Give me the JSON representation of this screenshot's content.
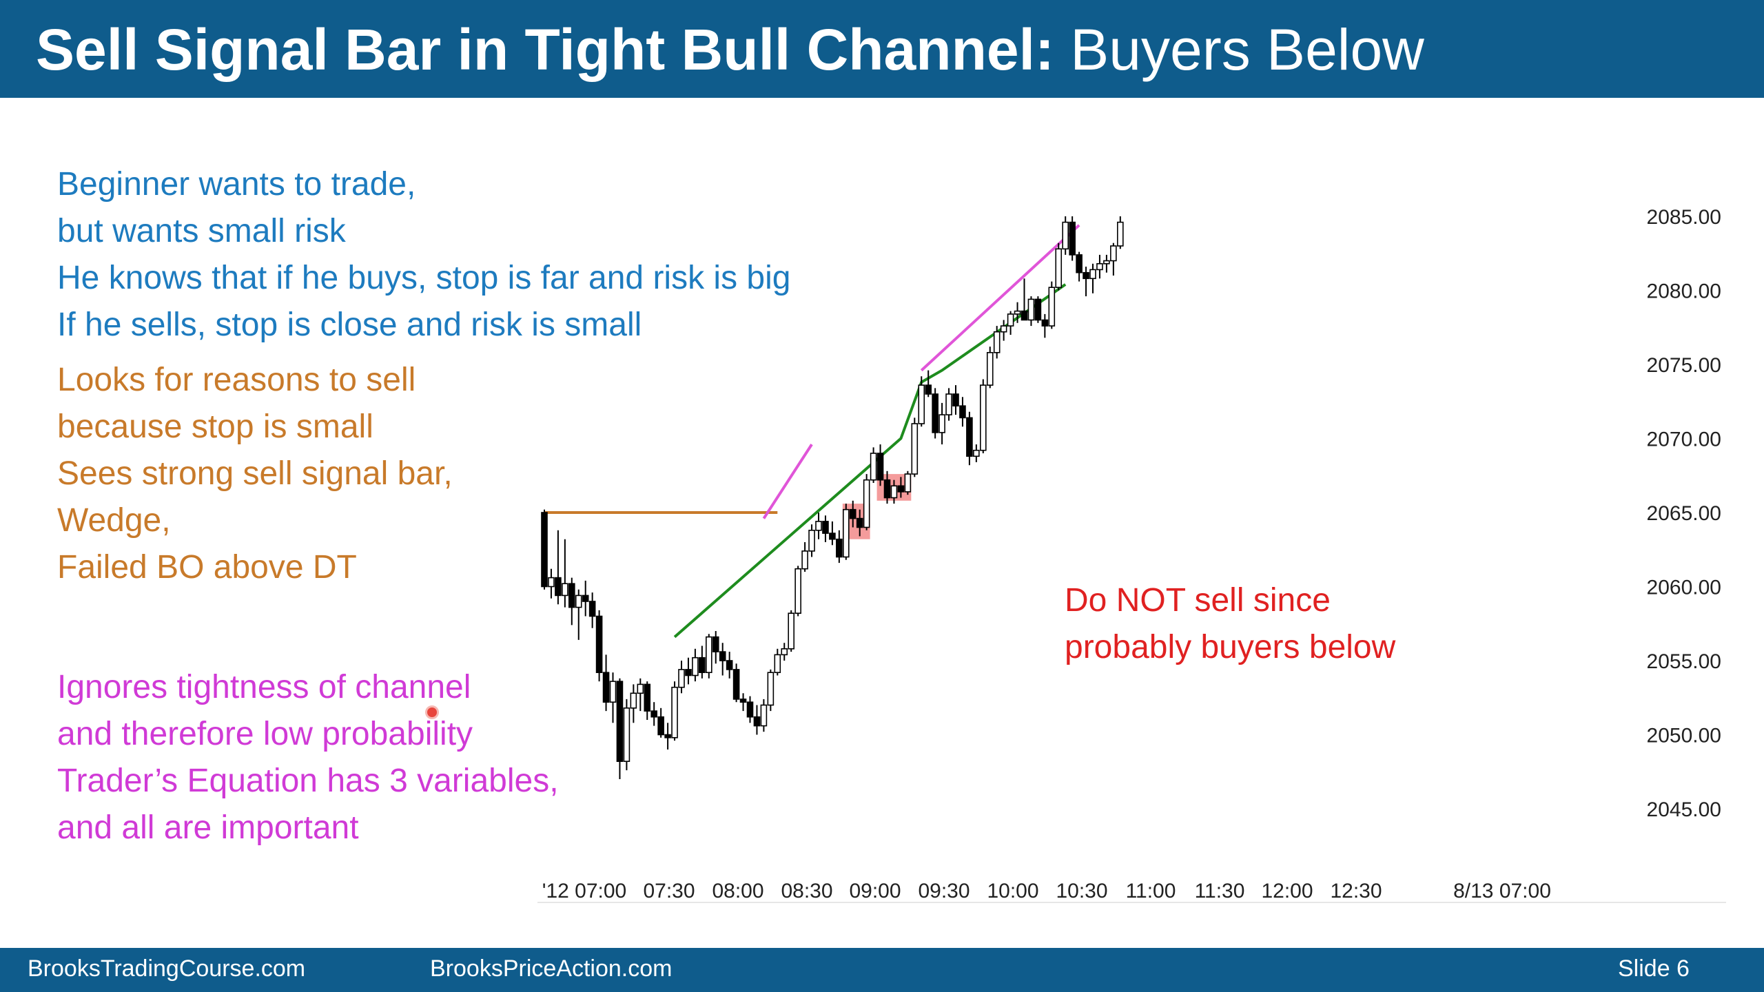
{
  "slide": {
    "title_bold": "Sell Signal Bar in Tight Bull Channel:",
    "title_normal": "Buyers Below",
    "blue_lines": [
      "Beginner wants to trade,",
      "but wants small risk",
      "He knows that if he buys, stop is far and risk is big",
      "If he sells, stop is close and risk is small"
    ],
    "orange_lines": [
      "Looks for reasons to sell",
      "because stop is small",
      "Sees strong sell signal bar,",
      "Wedge,",
      "Failed BO above DT"
    ],
    "magenta_lines": [
      "Ignores tightness of channel",
      "and therefore low probability",
      "Trader’s Equation has 3 variables,",
      "and all are important"
    ],
    "red_note_lines": [
      "Do NOT sell since",
      "probably buyers below"
    ],
    "footer": {
      "left": "BrooksTradingCourse.com",
      "middle": "BrooksPriceAction.com",
      "right": "Slide  6"
    },
    "colors": {
      "header": "#0f5c8c",
      "blue_text": "#1d7bbf",
      "orange_text": "#c87a2a",
      "magenta_text": "#d03ad6",
      "red_text": "#e02121",
      "green_line": "#1e8c1e",
      "magenta_line": "#e055d8",
      "orange_line": "#c87a2a",
      "highlight": "#f28a8a"
    }
  },
  "chart_data": {
    "type": "candlestick",
    "y_ticks": [
      2085,
      2080,
      2075,
      2070,
      2065,
      2060,
      2055,
      2050,
      2045
    ],
    "y_tick_labels": [
      "2085.00",
      "2080.00",
      "2075.00",
      "2070.00",
      "2065.00",
      "2060.00",
      "2055.00",
      "2050.00",
      "2045.00"
    ],
    "ylim": [
      2042.5,
      2087.5
    ],
    "x_labels": [
      "'12 07:00",
      "07:30",
      "08:00",
      "08:30",
      "09:00",
      "09:30",
      "10:00",
      "10:30",
      "11:00",
      "11:30",
      "12:00",
      "12:30",
      "8/13 07:00"
    ],
    "bar_interval_minutes": 5,
    "session_start": "07:00",
    "bars": [
      {
        "o": 2065.0,
        "h": 2065.2,
        "l": 2059.8,
        "c": 2060.0
      },
      {
        "o": 2060.0,
        "h": 2061.2,
        "l": 2059.2,
        "c": 2060.6
      },
      {
        "o": 2060.6,
        "h": 2063.8,
        "l": 2058.8,
        "c": 2059.4
      },
      {
        "o": 2059.4,
        "h": 2063.2,
        "l": 2058.6,
        "c": 2060.2
      },
      {
        "o": 2060.2,
        "h": 2060.6,
        "l": 2057.4,
        "c": 2058.6
      },
      {
        "o": 2058.6,
        "h": 2059.8,
        "l": 2056.4,
        "c": 2059.4
      },
      {
        "o": 2059.4,
        "h": 2060.4,
        "l": 2058.0,
        "c": 2059.0
      },
      {
        "o": 2059.0,
        "h": 2059.6,
        "l": 2057.2,
        "c": 2058.0
      },
      {
        "o": 2058.0,
        "h": 2058.4,
        "l": 2053.6,
        "c": 2054.2
      },
      {
        "o": 2054.2,
        "h": 2055.4,
        "l": 2051.6,
        "c": 2052.2
      },
      {
        "o": 2052.2,
        "h": 2054.2,
        "l": 2050.8,
        "c": 2053.6
      },
      {
        "o": 2053.6,
        "h": 2053.8,
        "l": 2047.0,
        "c": 2048.2
      },
      {
        "o": 2048.2,
        "h": 2052.4,
        "l": 2047.6,
        "c": 2051.8
      },
      {
        "o": 2051.8,
        "h": 2053.4,
        "l": 2050.8,
        "c": 2052.8
      },
      {
        "o": 2052.8,
        "h": 2053.8,
        "l": 2051.6,
        "c": 2053.4
      },
      {
        "o": 2053.4,
        "h": 2053.6,
        "l": 2051.0,
        "c": 2051.6
      },
      {
        "o": 2051.6,
        "h": 2052.2,
        "l": 2050.6,
        "c": 2051.2
      },
      {
        "o": 2051.2,
        "h": 2051.8,
        "l": 2049.8,
        "c": 2050.0
      },
      {
        "o": 2050.0,
        "h": 2050.8,
        "l": 2049.0,
        "c": 2049.8
      },
      {
        "o": 2049.8,
        "h": 2053.6,
        "l": 2049.6,
        "c": 2053.2
      },
      {
        "o": 2053.2,
        "h": 2055.0,
        "l": 2052.8,
        "c": 2054.4
      },
      {
        "o": 2054.4,
        "h": 2055.2,
        "l": 2053.4,
        "c": 2054.0
      },
      {
        "o": 2054.0,
        "h": 2055.8,
        "l": 2053.6,
        "c": 2055.2
      },
      {
        "o": 2055.2,
        "h": 2056.0,
        "l": 2053.8,
        "c": 2054.2
      },
      {
        "o": 2054.2,
        "h": 2056.8,
        "l": 2053.8,
        "c": 2056.6
      },
      {
        "o": 2056.6,
        "h": 2057.0,
        "l": 2054.8,
        "c": 2055.6
      },
      {
        "o": 2055.6,
        "h": 2056.2,
        "l": 2054.0,
        "c": 2055.0
      },
      {
        "o": 2055.0,
        "h": 2055.6,
        "l": 2053.8,
        "c": 2054.4
      },
      {
        "o": 2054.4,
        "h": 2054.8,
        "l": 2052.2,
        "c": 2052.4
      },
      {
        "o": 2052.4,
        "h": 2052.8,
        "l": 2051.6,
        "c": 2052.2
      },
      {
        "o": 2052.2,
        "h": 2052.6,
        "l": 2050.8,
        "c": 2051.2
      },
      {
        "o": 2051.2,
        "h": 2052.0,
        "l": 2050.0,
        "c": 2050.6
      },
      {
        "o": 2050.6,
        "h": 2052.4,
        "l": 2050.2,
        "c": 2052.0
      },
      {
        "o": 2052.0,
        "h": 2054.4,
        "l": 2051.6,
        "c": 2054.2
      },
      {
        "o": 2054.2,
        "h": 2055.8,
        "l": 2054.0,
        "c": 2055.4
      },
      {
        "o": 2055.4,
        "h": 2056.2,
        "l": 2055.0,
        "c": 2055.8
      },
      {
        "o": 2055.8,
        "h": 2058.4,
        "l": 2055.6,
        "c": 2058.2
      },
      {
        "o": 2058.2,
        "h": 2061.4,
        "l": 2058.0,
        "c": 2061.2
      },
      {
        "o": 2061.2,
        "h": 2063.0,
        "l": 2061.0,
        "c": 2062.4
      },
      {
        "o": 2062.4,
        "h": 2064.2,
        "l": 2062.0,
        "c": 2063.8
      },
      {
        "o": 2063.8,
        "h": 2065.0,
        "l": 2063.2,
        "c": 2064.4
      },
      {
        "o": 2064.4,
        "h": 2064.8,
        "l": 2063.0,
        "c": 2063.6
      },
      {
        "o": 2063.6,
        "h": 2064.4,
        "l": 2062.8,
        "c": 2063.2
      },
      {
        "o": 2063.2,
        "h": 2063.8,
        "l": 2061.6,
        "c": 2062.0
      },
      {
        "o": 2062.0,
        "h": 2065.6,
        "l": 2061.8,
        "c": 2065.2
      },
      {
        "o": 2065.2,
        "h": 2065.8,
        "l": 2064.0,
        "c": 2064.6
      },
      {
        "o": 2064.6,
        "h": 2065.2,
        "l": 2063.4,
        "c": 2064.0
      },
      {
        "o": 2064.0,
        "h": 2067.6,
        "l": 2063.8,
        "c": 2067.2
      },
      {
        "o": 2067.2,
        "h": 2069.4,
        "l": 2067.0,
        "c": 2069.0
      },
      {
        "o": 2069.0,
        "h": 2069.6,
        "l": 2066.8,
        "c": 2067.2
      },
      {
        "o": 2067.2,
        "h": 2067.8,
        "l": 2065.6,
        "c": 2066.0
      },
      {
        "o": 2066.0,
        "h": 2067.2,
        "l": 2065.6,
        "c": 2066.8
      },
      {
        "o": 2066.8,
        "h": 2067.4,
        "l": 2066.0,
        "c": 2066.4
      },
      {
        "o": 2066.4,
        "h": 2067.8,
        "l": 2066.2,
        "c": 2067.6
      },
      {
        "o": 2067.6,
        "h": 2071.4,
        "l": 2067.4,
        "c": 2071.0
      },
      {
        "o": 2071.0,
        "h": 2074.2,
        "l": 2070.8,
        "c": 2073.6
      },
      {
        "o": 2073.6,
        "h": 2074.6,
        "l": 2072.8,
        "c": 2073.0
      },
      {
        "o": 2073.0,
        "h": 2073.4,
        "l": 2070.0,
        "c": 2070.4
      },
      {
        "o": 2070.4,
        "h": 2072.4,
        "l": 2069.6,
        "c": 2071.6
      },
      {
        "o": 2071.6,
        "h": 2073.4,
        "l": 2071.2,
        "c": 2073.0
      },
      {
        "o": 2073.0,
        "h": 2073.6,
        "l": 2071.6,
        "c": 2072.2
      },
      {
        "o": 2072.2,
        "h": 2072.8,
        "l": 2070.8,
        "c": 2071.4
      },
      {
        "o": 2071.4,
        "h": 2071.8,
        "l": 2068.2,
        "c": 2068.8
      },
      {
        "o": 2068.8,
        "h": 2069.6,
        "l": 2068.4,
        "c": 2069.2
      },
      {
        "o": 2069.2,
        "h": 2074.0,
        "l": 2069.0,
        "c": 2073.6
      },
      {
        "o": 2073.6,
        "h": 2076.2,
        "l": 2073.4,
        "c": 2075.8
      },
      {
        "o": 2075.8,
        "h": 2077.6,
        "l": 2075.4,
        "c": 2077.2
      },
      {
        "o": 2077.2,
        "h": 2078.0,
        "l": 2076.6,
        "c": 2077.6
      },
      {
        "o": 2077.6,
        "h": 2078.6,
        "l": 2077.0,
        "c": 2078.4
      },
      {
        "o": 2078.4,
        "h": 2079.2,
        "l": 2077.8,
        "c": 2078.6
      },
      {
        "o": 2078.6,
        "h": 2080.8,
        "l": 2078.2,
        "c": 2078.0
      },
      {
        "o": 2078.0,
        "h": 2079.6,
        "l": 2077.6,
        "c": 2079.4
      },
      {
        "o": 2079.4,
        "h": 2079.6,
        "l": 2077.8,
        "c": 2078.0
      },
      {
        "o": 2078.0,
        "h": 2078.4,
        "l": 2076.8,
        "c": 2077.6
      },
      {
        "o": 2077.6,
        "h": 2080.6,
        "l": 2077.4,
        "c": 2080.2
      },
      {
        "o": 2080.2,
        "h": 2083.2,
        "l": 2080.0,
        "c": 2082.8
      },
      {
        "o": 2082.8,
        "h": 2085.0,
        "l": 2082.4,
        "c": 2084.6
      },
      {
        "o": 2084.6,
        "h": 2085.0,
        "l": 2082.0,
        "c": 2082.4
      },
      {
        "o": 2082.4,
        "h": 2082.6,
        "l": 2080.6,
        "c": 2081.2
      },
      {
        "o": 2081.2,
        "h": 2081.6,
        "l": 2079.6,
        "c": 2080.8
      },
      {
        "o": 2080.8,
        "h": 2081.8,
        "l": 2079.8,
        "c": 2081.4
      },
      {
        "o": 2081.4,
        "h": 2082.4,
        "l": 2080.8,
        "c": 2081.8
      },
      {
        "o": 2081.8,
        "h": 2082.4,
        "l": 2081.2,
        "c": 2082.0
      },
      {
        "o": 2082.0,
        "h": 2083.2,
        "l": 2081.0,
        "c": 2083.0
      },
      {
        "o": 2083.0,
        "h": 2085.0,
        "l": 2082.8,
        "c": 2084.6
      }
    ],
    "lines": [
      {
        "name": "orange-level",
        "color": "#c87a2a",
        "points": [
          [
            0,
            2065.0
          ],
          [
            34,
            2065.0
          ]
        ]
      },
      {
        "name": "green-trendline",
        "color": "#1e8c1e",
        "points": [
          [
            19,
            2056.6
          ],
          [
            52,
            2070.0
          ],
          [
            55,
            2073.8
          ],
          [
            58,
            2074.6
          ],
          [
            76,
            2080.4
          ]
        ]
      },
      {
        "name": "magenta-trendline",
        "color": "#e055d8",
        "points": [
          [
            32,
            2064.6
          ],
          [
            39,
            2069.6
          ]
        ]
      },
      {
        "name": "magenta-trendline-2",
        "color": "#e055d8",
        "points": [
          [
            55,
            2074.6
          ],
          [
            78,
            2084.4
          ]
        ]
      }
    ],
    "highlights": [
      {
        "name": "sell-signal-box-1",
        "from_bar": 44,
        "to_bar": 47,
        "low": 2063.2,
        "high": 2065.6
      },
      {
        "name": "sell-signal-box-2",
        "from_bar": 49,
        "to_bar": 53,
        "low": 2065.8,
        "high": 2067.6
      }
    ],
    "grid": false,
    "legend": "none"
  }
}
